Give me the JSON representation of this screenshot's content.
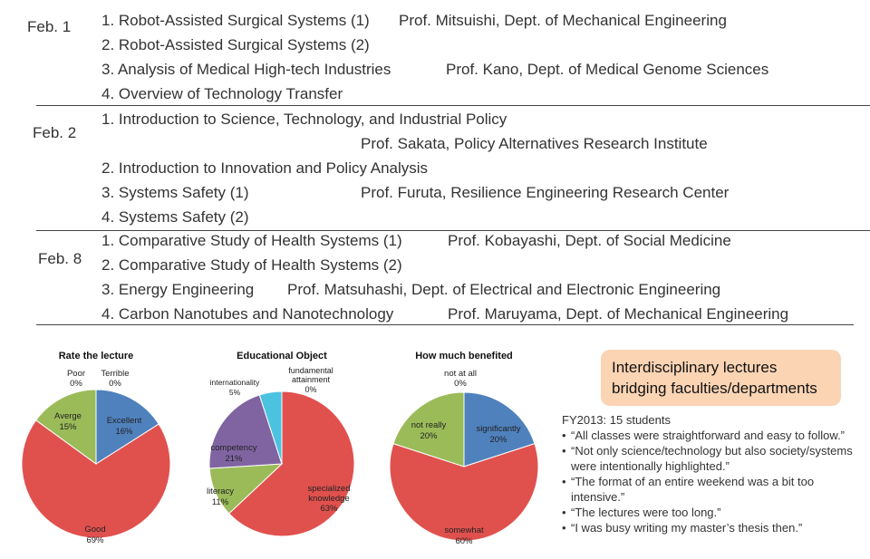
{
  "schedule": [
    {
      "date": "Feb. 1",
      "lectures": [
        {
          "title": "1. Robot-Assisted Surgical Systems (1)",
          "instructor": "Prof. Mitsuishi, Dept. of Mechanical Engineering"
        },
        {
          "title": "2. Robot-Assisted Surgical Systems (2)",
          "instructor": ""
        },
        {
          "title": "3. Analysis of Medical High-tech Industries",
          "instructor": "Prof. Kano, Dept. of Medical Genome Sciences"
        },
        {
          "title": "4. Overview of Technology Transfer",
          "instructor": ""
        }
      ]
    },
    {
      "date": "Feb. 2",
      "lectures": [
        {
          "title": "1. Introduction to Science, Technology, and Industrial Policy",
          "instructor": ""
        },
        {
          "title": "",
          "instructor": "Prof. Sakata, Policy Alternatives Research Institute"
        },
        {
          "title": "2. Introduction to Innovation and Policy Analysis",
          "instructor": ""
        },
        {
          "title": "3. Systems Safety (1)",
          "instructor": "Prof. Furuta, Resilience Engineering Research Center"
        },
        {
          "title": "4. Systems Safety (2)",
          "instructor": ""
        }
      ]
    },
    {
      "date": "Feb. 8",
      "lectures": [
        {
          "title": "1. Comparative Study of Health Systems (1)",
          "instructor": "Prof. Kobayashi, Dept. of Social Medicine"
        },
        {
          "title": "2. Comparative Study of Health Systems (2)",
          "instructor": ""
        },
        {
          "title": "3. Energy Engineering",
          "instructor": "Prof. Matsuhashi, Dept. of Electrical and Electronic Engineering"
        },
        {
          "title": "4. Carbon Nanotubes and Nanotechnology",
          "instructor": "Prof. Maruyama, Dept. of Mechanical Engineering"
        }
      ]
    }
  ],
  "chart_data": [
    {
      "type": "pie",
      "title": "Rate the lecture",
      "slices": [
        {
          "label": "Excellent",
          "value": 16,
          "value_text": "16%",
          "color": "#4f81bd"
        },
        {
          "label": "Good",
          "value": 69,
          "value_text": "69%",
          "color": "#e0514e"
        },
        {
          "label": "Averge",
          "value": 15,
          "value_text": "15%",
          "color": "#9bbb59"
        },
        {
          "label": "Poor",
          "value": 0,
          "value_text": "0%",
          "color": "#8064a2"
        },
        {
          "label": "Terrible",
          "value": 0,
          "value_text": "0%",
          "color": "#4bacc6"
        }
      ]
    },
    {
      "type": "pie",
      "title": "Educational Object",
      "slices": [
        {
          "label": "fundamental attainment",
          "value": 0,
          "value_text": "0%",
          "color": "#4f81bd"
        },
        {
          "label": "specialized knowledge",
          "value": 63,
          "value_text": "63%",
          "color": "#e0514e"
        },
        {
          "label": "literacy",
          "value": 11,
          "value_text": "11%",
          "color": "#9bbb59"
        },
        {
          "label": "competency",
          "value": 21,
          "value_text": "21%",
          "color": "#8064a2"
        },
        {
          "label": "internationality",
          "value": 5,
          "value_text": "5%",
          "color": "#4bc3e0"
        }
      ]
    },
    {
      "type": "pie",
      "title": "How much benefited",
      "slices": [
        {
          "label": "significantly",
          "value": 20,
          "value_text": "20%",
          "color": "#4f81bd"
        },
        {
          "label": "somewhat",
          "value": 60,
          "value_text": "60%",
          "color": "#e0514e"
        },
        {
          "label": "not really",
          "value": 20,
          "value_text": "20%",
          "color": "#9bbb59"
        },
        {
          "label": "not at all",
          "value": 0,
          "value_text": "0%",
          "color": "#8064a2"
        }
      ]
    }
  ],
  "callout": {
    "line1": "Interdisciplinary lectures",
    "line2": "bridging faculties/departments"
  },
  "feedback": {
    "cohort": "FY2013: 15 students",
    "comments": [
      "“All classes were straightforward and easy to follow.”",
      "“Not only science/technology but also society/systems were intentionally highlighted.”",
      "“The format of an entire weekend was a bit too intensive.”",
      "“The lectures were too long.”",
      "“I was busy writing my master’s thesis then.”"
    ]
  }
}
